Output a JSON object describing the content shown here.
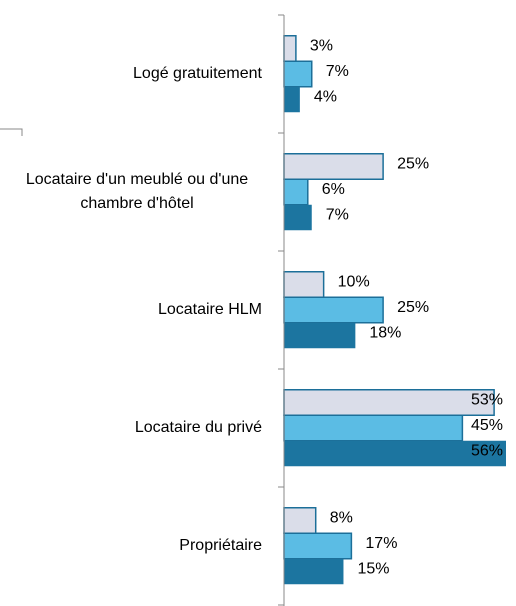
{
  "chart_data": {
    "type": "bar",
    "orientation": "horizontal",
    "categories": [
      "Logé gratuitement",
      "Locataire d'un meublé ou d'une chambre d'hôtel",
      "Locataire HLM",
      "Locataire du privé",
      "Propriétaire"
    ],
    "series": [
      {
        "color": "#dadde9",
        "values": [
          3,
          25,
          10,
          53,
          8
        ],
        "value_labels": [
          "3%",
          "25%",
          "10%",
          "53%",
          "8%"
        ]
      },
      {
        "color": "#5bbce4",
        "values": [
          7,
          6,
          25,
          45,
          17
        ],
        "value_labels": [
          "7%",
          "6%",
          "25%",
          "45%",
          "17%"
        ]
      },
      {
        "color": "#1c75a0",
        "values": [
          4,
          7,
          18,
          56,
          15
        ],
        "value_labels": [
          "4%",
          "7%",
          "18%",
          "56%",
          "15%"
        ]
      }
    ],
    "xlim": [
      0,
      56
    ]
  }
}
